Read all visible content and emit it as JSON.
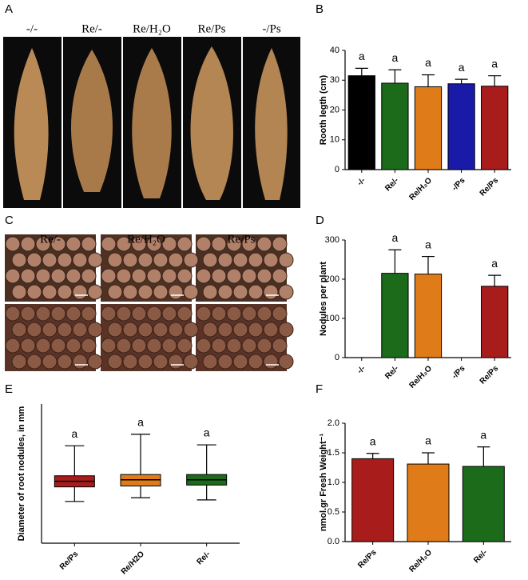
{
  "photo_panels": [
    {
      "letter": "A",
      "labels": [
        "-/-",
        "Re/-",
        "Re/H₂O",
        "Re/Ps",
        "-/Ps"
      ]
    },
    {
      "letter": "C",
      "labels": [
        "Re/-",
        "Re/H₂O",
        "Re/Ps"
      ]
    }
  ],
  "chart_data": [
    {
      "type": "bar",
      "panel_label": "B",
      "y_label": "Rooth legth (cm)",
      "categories": [
        "-/-",
        "Re/-",
        "Re/H₂O",
        "-/Ps",
        "Re/Ps"
      ],
      "values": [
        31.5,
        29,
        27.8,
        28.8,
        28
      ],
      "errors": [
        2.5,
        4.5,
        4,
        1.5,
        3.5
      ],
      "colors": [
        "#000000",
        "#1b6b1b",
        "#e07b1a",
        "#1a1aa8",
        "#a81c1c"
      ],
      "annotations": [
        "a",
        "a",
        "a",
        "a",
        "a"
      ],
      "ylim": [
        0,
        40
      ],
      "yticks": [
        0,
        10,
        20,
        30,
        40
      ]
    },
    {
      "type": "bar",
      "panel_label": "D",
      "y_label": "Nodules per plant",
      "categories": [
        "-/-",
        "Re/-",
        "Re/H₂O",
        "-/Ps",
        "Re/Ps"
      ],
      "values": [
        null,
        215,
        213,
        null,
        182
      ],
      "errors": [
        null,
        60,
        45,
        null,
        28
      ],
      "colors": [
        "#000000",
        "#1b6b1b",
        "#e07b1a",
        "#1a1aa8",
        "#a81c1c"
      ],
      "annotations": [
        null,
        "a",
        "a",
        null,
        "a"
      ],
      "ylim": [
        0,
        300
      ],
      "yticks": [
        0,
        100,
        200,
        300
      ]
    },
    {
      "type": "box",
      "panel_label": "E",
      "y_label": "Diameter of root nodules, in mm",
      "categories": [
        "Re/Ps",
        "Re/H2O",
        "Re/-"
      ],
      "min": [
        1.35,
        1.47,
        1.4
      ],
      "q1": [
        1.82,
        1.85,
        1.88
      ],
      "median": [
        2.0,
        2.05,
        2.05
      ],
      "q3": [
        2.18,
        2.22,
        2.22
      ],
      "max": [
        3.15,
        3.52,
        3.18
      ],
      "colors": [
        "#a81c1c",
        "#e07b1a",
        "#1b6b1b"
      ],
      "annotations": [
        "a",
        "a",
        "a"
      ],
      "ylim": [
        0,
        4.5
      ]
    },
    {
      "type": "bar",
      "panel_label": "F",
      "y_label": "nmol.gr Fresh Weight⁻¹",
      "categories": [
        "Re/Ps",
        "Re/H₂O",
        "Re/-"
      ],
      "values": [
        1.4,
        1.31,
        1.27
      ],
      "errors": [
        0.09,
        0.19,
        0.33
      ],
      "colors": [
        "#a81c1c",
        "#e07b1a",
        "#1b6b1b"
      ],
      "annotations": [
        "a",
        "a",
        "a"
      ],
      "ylim": [
        0,
        2.0
      ],
      "yticks": [
        {
          "value": 0,
          "label": "0.0"
        },
        {
          "value": 0.5,
          "label": "0.5"
        },
        {
          "value": 1,
          "label": "1.0"
        },
        {
          "value": 1.5,
          "label": "1.5"
        },
        {
          "value": 2,
          "label": "2.0"
        }
      ]
    }
  ]
}
